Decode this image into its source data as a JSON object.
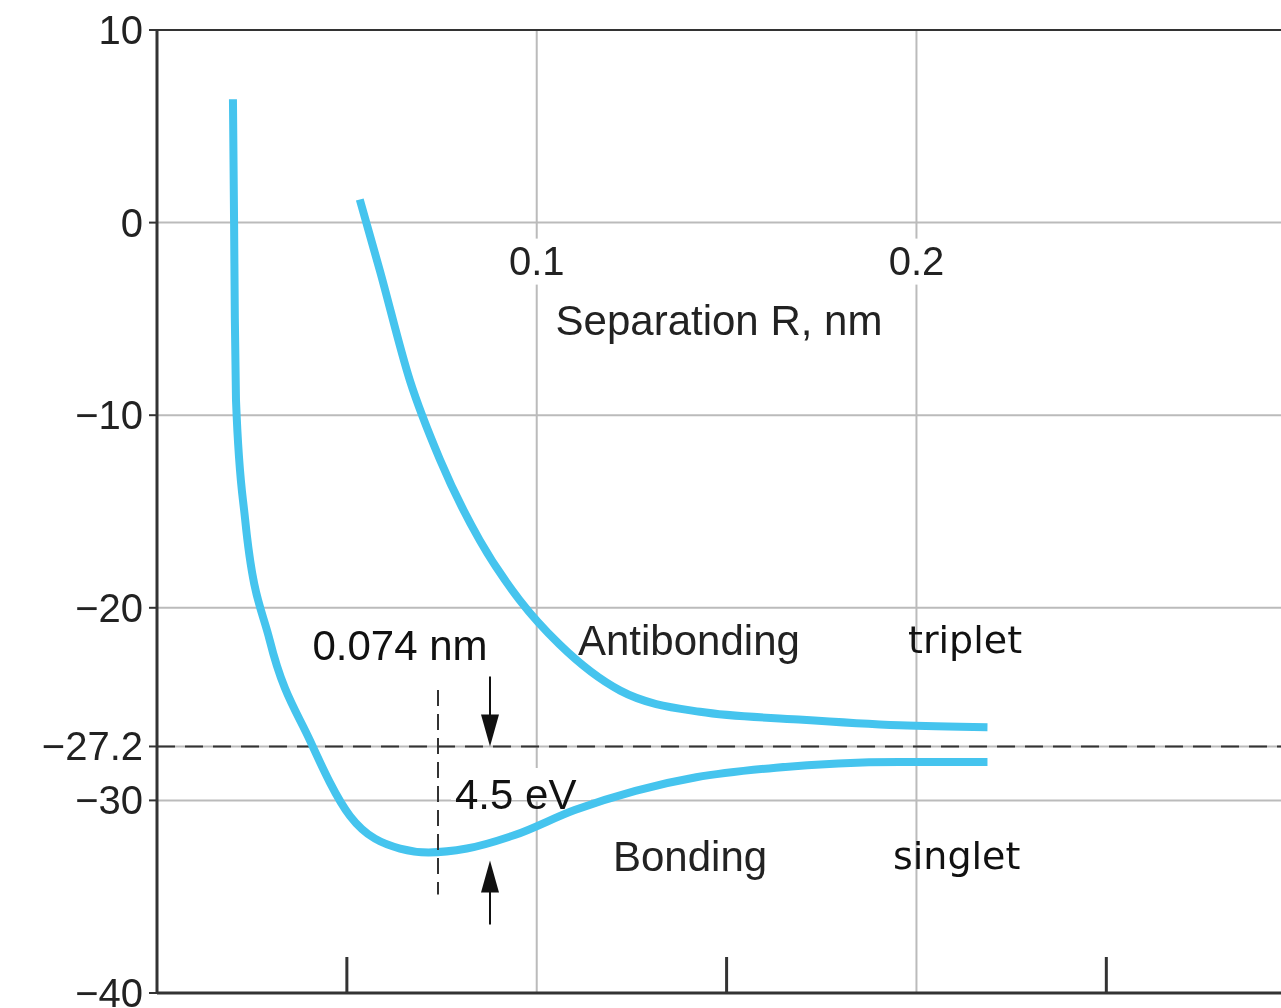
{
  "chart_data": {
    "type": "line",
    "xlabel": "Separation R, nm",
    "xlim": [
      0,
      0.296
    ],
    "xticks": [
      0.1,
      0.2
    ],
    "ylim": [
      -40,
      10
    ],
    "yticks": [
      10,
      0,
      {
        "value": -10,
        "label": "−10"
      },
      {
        "value": -20,
        "label": "−20"
      },
      {
        "value": -27.2,
        "label": "−27.2"
      },
      {
        "value": -30,
        "label": "−30"
      },
      {
        "value": -40,
        "label": "−40"
      }
    ],
    "grid": true,
    "legend": false,
    "marker": "none",
    "series": [
      {
        "name": "Antibonding",
        "color": "#45c4ee",
        "x": [
          0.0534,
          0.0587,
          0.0666,
          0.0745,
          0.085,
          0.0955,
          0.106,
          0.122,
          0.143,
          0.169,
          0.1955,
          0.2187
        ],
        "values": [
          1.2,
          -2.5,
          -8.2,
          -12.3,
          -16.5,
          -19.6,
          -21.9,
          -24.3,
          -25.4,
          -25.8,
          -26.1,
          -26.2
        ]
      },
      {
        "name": "Bonding",
        "color": "#45c4ee",
        "x": [
          0.02,
          0.0203,
          0.0205,
          0.0208,
          0.0232,
          0.0297,
          0.0403,
          0.0508,
          0.064,
          0.0715,
          0.0816,
          0.0942,
          0.11,
          0.126,
          0.142,
          0.163,
          0.1955,
          0.2187
        ],
        "values": [
          6.4,
          0,
          -5,
          -9.2,
          -15.4,
          -21.7,
          -26.9,
          -30.8,
          -32.5,
          -32.7,
          -32.5,
          -31.8,
          -30.5,
          -29.5,
          -28.8,
          -28.3,
          -28.0,
          -28.0
        ]
      }
    ],
    "ref_lines": [
      {
        "axis": "y",
        "value": -27.2,
        "line_style": "dashed",
        "color": "#333333"
      }
    ],
    "annotations": [
      "0.074 nm",
      "4.5 eV",
      "triplet",
      "singlet"
    ]
  }
}
